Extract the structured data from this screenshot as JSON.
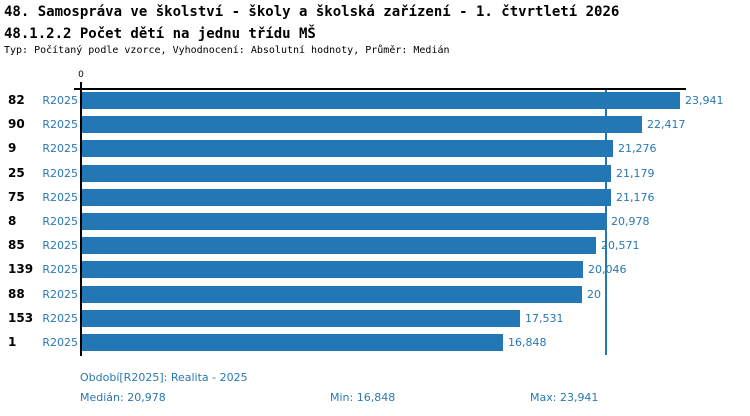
{
  "header": {
    "title_line1": "48. Samospráva ve školství - školy a školská zařízení - 1. čtvrtletí 2026",
    "title_line2": "48.1.2.2 Počet dětí na jednu třídu MŠ",
    "meta_line": "Typ: Počítaný podle vzorce, Vyhodnocení: Absolutní hodnoty, Průměr: Medián"
  },
  "colors": {
    "bar": "#2377b4",
    "blue_text": "#2878b4",
    "median_line": "#2377b4",
    "axis": "#000000"
  },
  "chart_data": {
    "type": "bar",
    "orientation": "horizontal",
    "x_axis": {
      "origin_label": "0",
      "xlim": [
        0,
        24200
      ],
      "grid": false
    },
    "median_value": 20978,
    "rows": [
      {
        "id": "82",
        "period": "R2025",
        "value": 23941,
        "label": "23,941"
      },
      {
        "id": "90",
        "period": "R2025",
        "value": 22417,
        "label": "22,417"
      },
      {
        "id": "9",
        "period": "R2025",
        "value": 21276,
        "label": "21,276"
      },
      {
        "id": "25",
        "period": "R2025",
        "value": 21179,
        "label": "21,179"
      },
      {
        "id": "75",
        "period": "R2025",
        "value": 21176,
        "label": "21,176"
      },
      {
        "id": "8",
        "period": "R2025",
        "value": 20978,
        "label": "20,978"
      },
      {
        "id": "85",
        "period": "R2025",
        "value": 20571,
        "label": "20,571"
      },
      {
        "id": "139",
        "period": "R2025",
        "value": 20046,
        "label": "20,046"
      },
      {
        "id": "88",
        "period": "R2025",
        "value": 20000,
        "label": "20"
      },
      {
        "id": "153",
        "period": "R2025",
        "value": 17531,
        "label": "17,531"
      },
      {
        "id": "1",
        "period": "R2025",
        "value": 16848,
        "label": "16,848"
      }
    ]
  },
  "footer": {
    "period_info": "Období[R2025]: Realita - 2025",
    "median": "Medián: 20,978",
    "min": "Min: 16,848",
    "max": "Max: 23,941"
  }
}
